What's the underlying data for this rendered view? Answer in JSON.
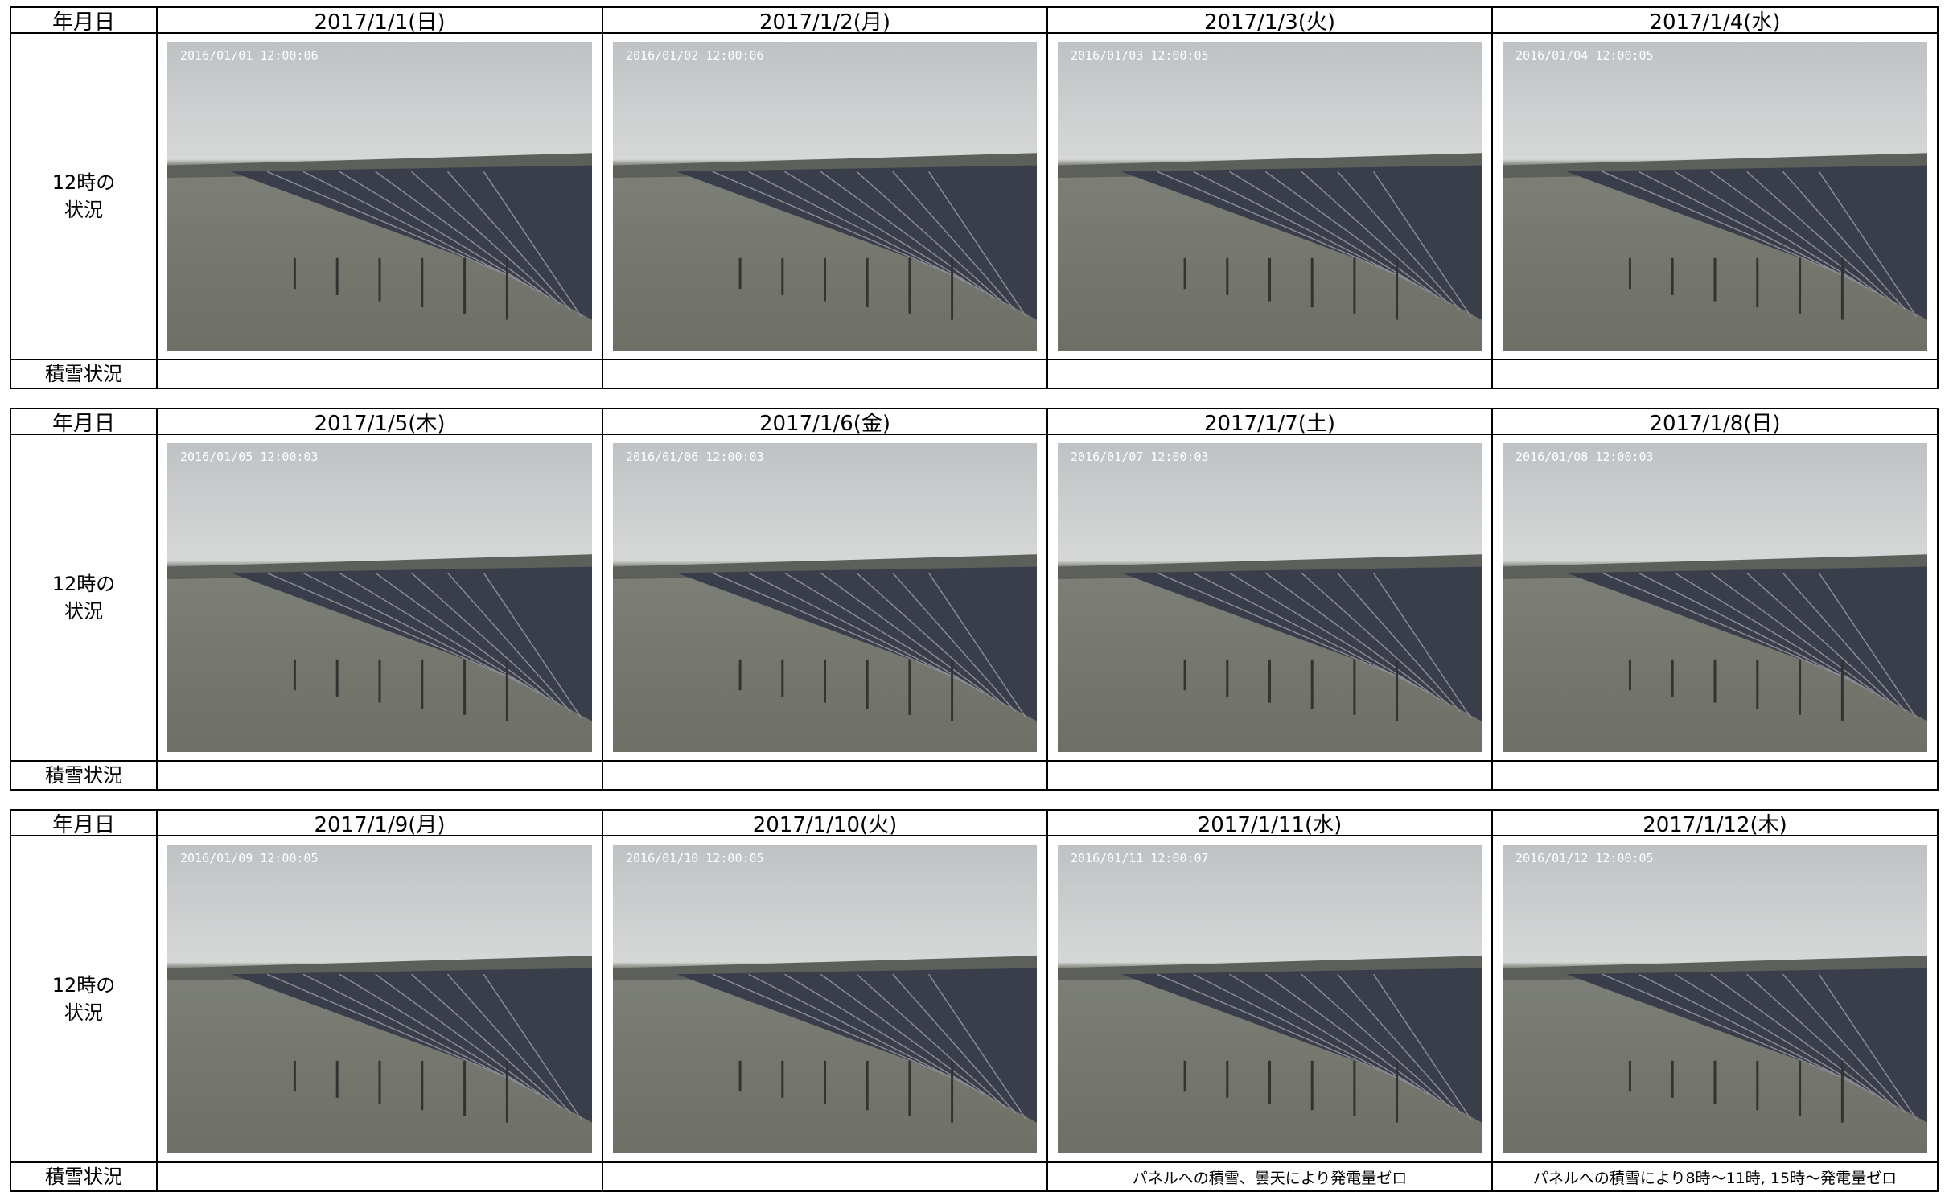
{
  "blocks": [
    {
      "header_label": "年月日",
      "row_label": "12時の\n状況",
      "snow_label": "積雪状況",
      "days": [
        {
          "date": "2017/1/1(日)",
          "timestamp": "2016/01/01 12:00:06"
        },
        {
          "date": "2017/1/2(月)",
          "timestamp": "2016/01/02 12:00:06"
        },
        {
          "date": "2017/1/3(火)",
          "timestamp": "2016/01/03 12:00:05"
        },
        {
          "date": "2017/1/4(水)",
          "timestamp": "2016/01/04 12:00:05"
        }
      ]
    },
    {
      "header_label": "年月日",
      "row_label": "12時の\n状況",
      "snow_label": "積雪状況",
      "days": [
        {
          "date": "2017/1/5(木)",
          "timestamp": "2016/01/05 12:00:03"
        },
        {
          "date": "2017/1/6(金)",
          "timestamp": "2016/01/06 12:00:03"
        },
        {
          "date": "2017/1/7(土)",
          "timestamp": "2016/01/07 12:00:03"
        },
        {
          "date": "2017/1/8(日)",
          "timestamp": "2016/01/08 12:00:03"
        }
      ]
    },
    {
      "header_label": "年月日",
      "row_label": "12時の\n状況",
      "snow_label": "積雪状況",
      "days": [
        {
          "date": "2017/1/9(月)",
          "timestamp": "2016/01/09 12:00:05"
        },
        {
          "date": "2017/1/10(火)",
          "timestamp": "2016/01/10 12:00:05"
        },
        {
          "date": "2017/1/11(水)",
          "timestamp": "2016/01/11 12:00:07",
          "snow_note": "パネルへの積雪、曇天により発電量ゼロ"
        },
        {
          "date": "2017/1/12(木)",
          "timestamp": "2016/01/12 12:00:05",
          "snow_note": "パネルへの積雪により8時～11時, 15時～発電量ゼロ"
        }
      ]
    }
  ]
}
